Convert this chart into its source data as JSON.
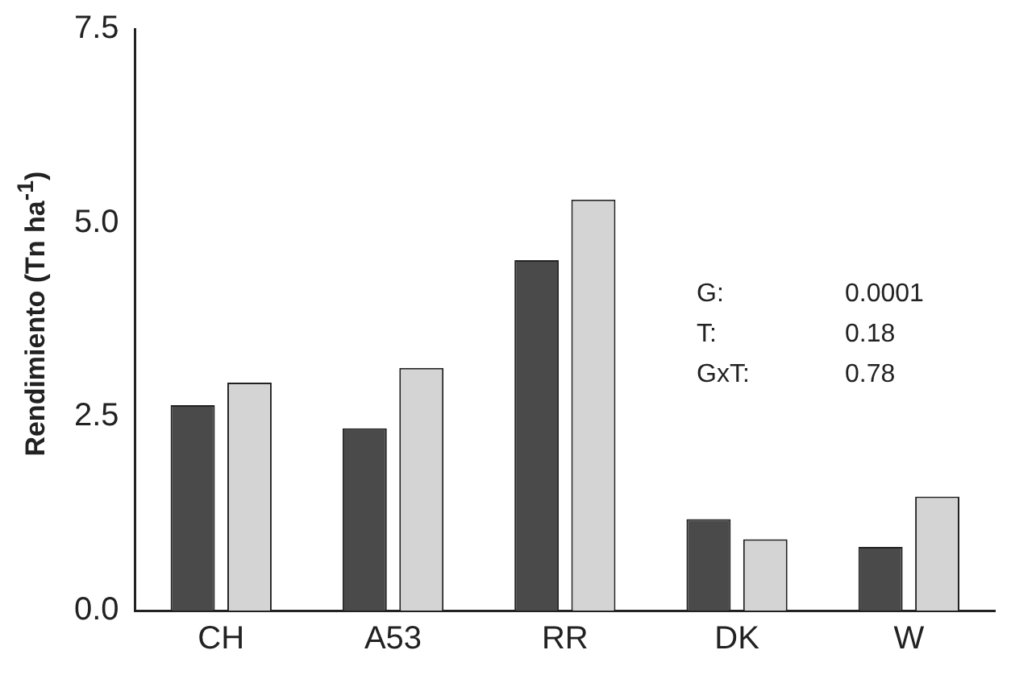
{
  "chart_data": {
    "type": "bar",
    "ylabel": "Rendimiento (Tn ha$^{-1}$)",
    "categories": [
      "CH",
      "A53",
      "RR",
      "DK",
      "W"
    ],
    "series": [
      {
        "color": "#4a4a4a",
        "values": [
          2.65,
          2.35,
          4.52,
          1.18,
          0.82
        ]
      },
      {
        "color": "#d4d4d4",
        "values": [
          2.94,
          3.13,
          5.3,
          0.92,
          1.47
        ]
      }
    ],
    "ylim": [
      0,
      7.5
    ],
    "yticks": [
      {
        "value": 0,
        "label": "0.0"
      },
      {
        "value": 2.5,
        "label": "2.5"
      },
      {
        "value": 5,
        "label": "5.0"
      },
      {
        "value": 7.5,
        "label": "7.5"
      }
    ],
    "grid": false,
    "legend": false,
    "annotations": [
      "G:\t0.0001",
      "T:\t0.18",
      "GxT:\t0.78"
    ]
  }
}
